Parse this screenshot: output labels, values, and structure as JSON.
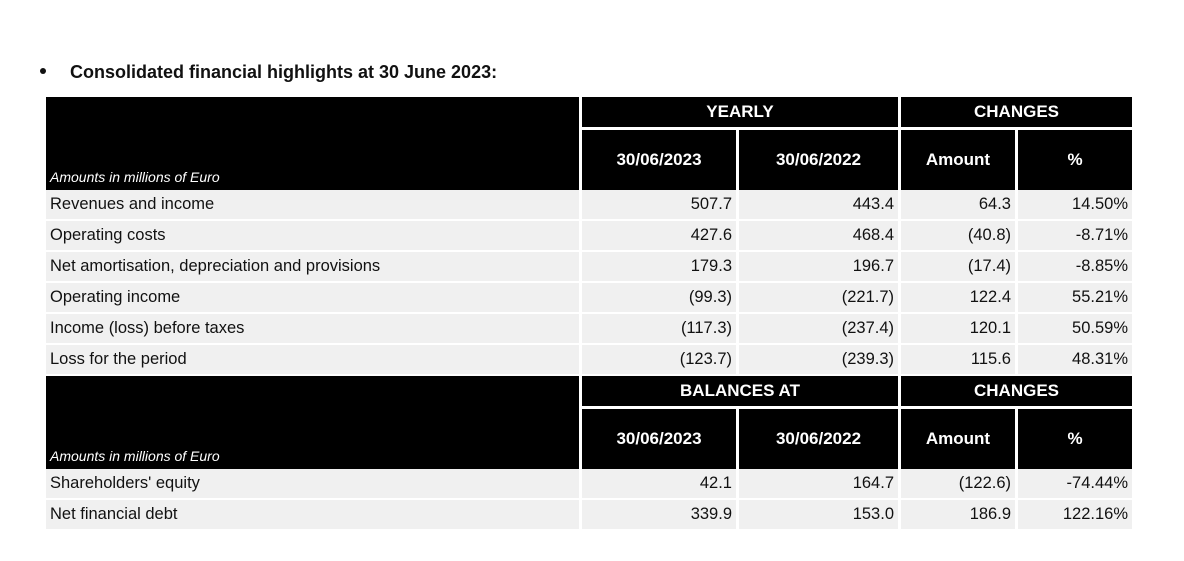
{
  "heading": "Consolidated financial highlights at 30 June 2023:",
  "section1": {
    "group_left": "YEARLY",
    "group_right": "CHANGES",
    "amounts_label": "Amounts in millions of Euro",
    "columns": [
      "30/06/2023",
      "30/06/2022",
      "Amount",
      "%"
    ],
    "rows": [
      {
        "label": "Revenues and income",
        "v2023": "507.7",
        "v2022": "443.4",
        "amount": "64.3",
        "pct": "14.50%"
      },
      {
        "label": "Operating costs",
        "v2023": "427.6",
        "v2022": "468.4",
        "amount": "(40.8)",
        "pct": "-8.71%"
      },
      {
        "label": "Net amortisation, depreciation and provisions",
        "v2023": "179.3",
        "v2022": "196.7",
        "amount": "(17.4)",
        "pct": "-8.85%"
      },
      {
        "label": "Operating income",
        "v2023": "(99.3)",
        "v2022": "(221.7)",
        "amount": "122.4",
        "pct": "55.21%"
      },
      {
        "label": "Income (loss) before taxes",
        "v2023": "(117.3)",
        "v2022": "(237.4)",
        "amount": "120.1",
        "pct": "50.59%"
      },
      {
        "label": "Loss for the period",
        "v2023": "(123.7)",
        "v2022": "(239.3)",
        "amount": "115.6",
        "pct": "48.31%"
      }
    ]
  },
  "section2": {
    "group_left": "BALANCES AT",
    "group_right": "CHANGES",
    "amounts_label": "Amounts in millions of Euro",
    "columns": [
      "30/06/2023",
      "30/06/2022",
      "Amount",
      "%"
    ],
    "rows": [
      {
        "label": "Shareholders' equity",
        "v2023": "42.1",
        "v2022": "164.7",
        "amount": "(122.6)",
        "pct": "-74.44%"
      },
      {
        "label": "Net financial debt",
        "v2023": "339.9",
        "v2022": "153.0",
        "amount": "186.9",
        "pct": "122.16%"
      }
    ]
  }
}
